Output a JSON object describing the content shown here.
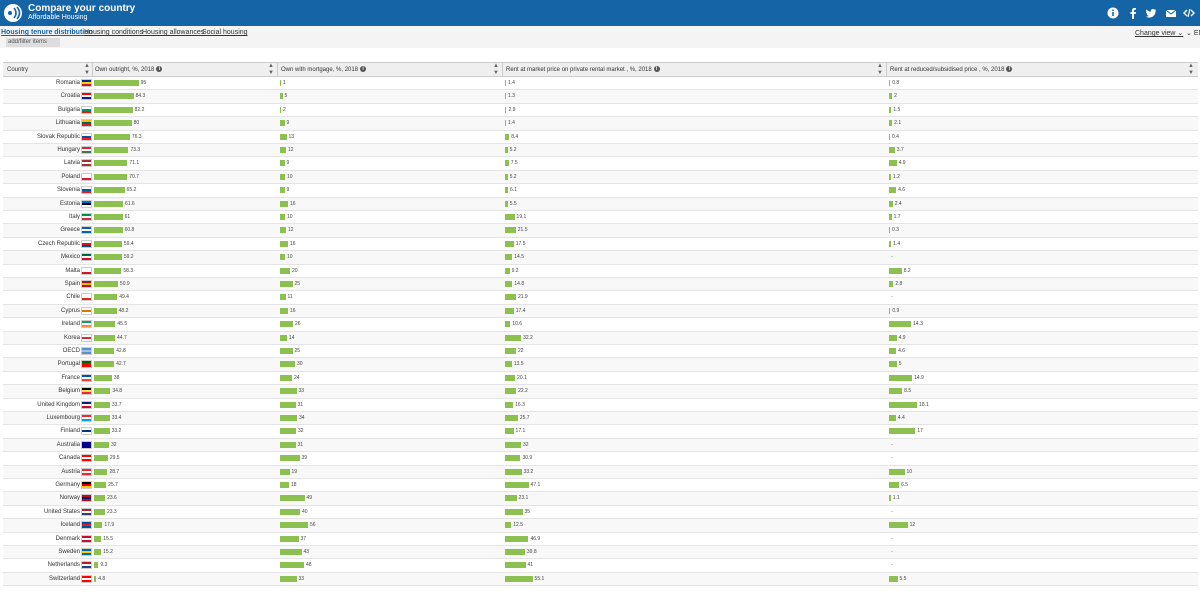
{
  "header": {
    "title": "Compare your country",
    "subtitle": "Affordable Housing",
    "color": "#1565a6"
  },
  "nav": {
    "tabs": [
      "Housing tenure distribution",
      "Housing conditions",
      "Housing allowances",
      "Social housing"
    ],
    "active": 0,
    "chip": "add/filter items",
    "change_view": "Change view",
    "lang": "EN"
  },
  "table": {
    "country_header": "Country",
    "columns": [
      "Own outright, %, 2018",
      "Own with mortgage, %, 2018",
      "Rent at market price on private rental market , %, 2018",
      "Rent at reduced/subsidised price , %, 2018"
    ],
    "bar_color": "#8cc152",
    "rows": [
      {
        "country": "Romania",
        "flag": [
          "#002b7f",
          "#fcd116",
          "#ce1126"
        ],
        "v": [
          "95",
          "1",
          "1.4",
          "0.8"
        ]
      },
      {
        "country": "Croatia",
        "flag": [
          "#ff0000",
          "#ffffff",
          "#171796"
        ],
        "v": [
          "84.3",
          "5",
          "1.3",
          "2"
        ]
      },
      {
        "country": "Bulgaria",
        "flag": [
          "#ffffff",
          "#00966e",
          "#d62612"
        ],
        "v": [
          "82.2",
          "2",
          "2.9",
          "1.5"
        ]
      },
      {
        "country": "Lithuania",
        "flag": [
          "#fdb913",
          "#006a44",
          "#c1272d"
        ],
        "v": [
          "80",
          "9",
          "1.4",
          "2.1"
        ]
      },
      {
        "country": "Slovak Republic",
        "flag": [
          "#ffffff",
          "#0b4ea2",
          "#ee1c25"
        ],
        "v": [
          "76.3",
          "13",
          "8.4",
          "0.4"
        ]
      },
      {
        "country": "Hungary",
        "flag": [
          "#ce2939",
          "#ffffff",
          "#477050"
        ],
        "v": [
          "73.3",
          "12",
          "5.2",
          "3.7"
        ]
      },
      {
        "country": "Latvia",
        "flag": [
          "#9e3039",
          "#ffffff",
          "#9e3039"
        ],
        "v": [
          "71.1",
          "9",
          "7.5",
          "4.9"
        ]
      },
      {
        "country": "Poland",
        "flag": [
          "#ffffff",
          "#ffffff",
          "#dc143c"
        ],
        "v": [
          "70.7",
          "10",
          "5.2",
          "1.2"
        ]
      },
      {
        "country": "Slovenia",
        "flag": [
          "#ffffff",
          "#005da4",
          "#ed1c24"
        ],
        "v": [
          "65.2",
          "9",
          "6.1",
          "4.6"
        ]
      },
      {
        "country": "Estonia",
        "flag": [
          "#0072ce",
          "#000000",
          "#ffffff"
        ],
        "v": [
          "61.6",
          "16",
          "5.5",
          "2.4"
        ]
      },
      {
        "country": "Italy",
        "flag": [
          "#009246",
          "#ffffff",
          "#ce2b37"
        ],
        "v": [
          "61",
          "10",
          "19.1",
          "1.7"
        ]
      },
      {
        "country": "Greece",
        "flag": [
          "#0d5eaf",
          "#ffffff",
          "#0d5eaf"
        ],
        "v": [
          "60.8",
          "12",
          "21.5",
          "0.3"
        ]
      },
      {
        "country": "Czech Republic",
        "flag": [
          "#ffffff",
          "#d7141a",
          "#11457e"
        ],
        "v": [
          "59.4",
          "16",
          "17.5",
          "1.4"
        ]
      },
      {
        "country": "Mexico",
        "flag": [
          "#006847",
          "#ffffff",
          "#ce1126"
        ],
        "v": [
          "59.2",
          "10",
          "14.5",
          "-"
        ]
      },
      {
        "country": "Malta",
        "flag": [
          "#ffffff",
          "#ffffff",
          "#cf142b"
        ],
        "v": [
          "58.3",
          "20",
          "9.2",
          "8.2"
        ]
      },
      {
        "country": "Spain",
        "flag": [
          "#aa151b",
          "#f1bf00",
          "#aa151b"
        ],
        "v": [
          "50.9",
          "25",
          "14.8",
          "2.8"
        ]
      },
      {
        "country": "Chile",
        "flag": [
          "#ffffff",
          "#ffffff",
          "#d52b1e"
        ],
        "v": [
          "49.4",
          "11",
          "21.9",
          "-"
        ]
      },
      {
        "country": "Cyprus",
        "flag": [
          "#ffffff",
          "#d57800",
          "#ffffff"
        ],
        "v": [
          "48.2",
          "16",
          "17.4",
          "0.9"
        ]
      },
      {
        "country": "Ireland",
        "flag": [
          "#169b62",
          "#ffffff",
          "#ff883e"
        ],
        "v": [
          "45.5",
          "26",
          "10.6",
          "14.3"
        ]
      },
      {
        "country": "Korea",
        "flag": [
          "#ffffff",
          "#cd2e3a",
          "#ffffff"
        ],
        "v": [
          "44.7",
          "14",
          "32.2",
          "4.9"
        ]
      },
      {
        "country": "OECD",
        "flag": [
          "#5b8fc7",
          "#9cc3e6",
          "#5b8fc7"
        ],
        "v": [
          "42.8",
          "25",
          "22",
          "4.6"
        ]
      },
      {
        "country": "Portugal",
        "flag": [
          "#006600",
          "#ff0000",
          "#ff0000"
        ],
        "v": [
          "42.7",
          "30",
          "13.5",
          "5"
        ]
      },
      {
        "country": "France",
        "flag": [
          "#0055a4",
          "#ffffff",
          "#ef4135"
        ],
        "v": [
          "38",
          "24",
          "20.1",
          "14.9"
        ]
      },
      {
        "country": "Belgium",
        "flag": [
          "#000000",
          "#fae042",
          "#ed2939"
        ],
        "v": [
          "34.8",
          "33",
          "22.2",
          "8.5"
        ]
      },
      {
        "country": "United Kingdom",
        "flag": [
          "#012169",
          "#ffffff",
          "#c8102e"
        ],
        "v": [
          "33.7",
          "31",
          "16.3",
          "18.1"
        ]
      },
      {
        "country": "Luxembourg",
        "flag": [
          "#ed2939",
          "#ffffff",
          "#00a1de"
        ],
        "v": [
          "33.4",
          "34",
          "25.7",
          "4.4"
        ]
      },
      {
        "country": "Finland",
        "flag": [
          "#ffffff",
          "#003580",
          "#ffffff"
        ],
        "v": [
          "33.2",
          "32",
          "17.1",
          "17"
        ]
      },
      {
        "country": "Australia",
        "flag": [
          "#00008b",
          "#00008b",
          "#00008b"
        ],
        "v": [
          "32",
          "31",
          "32",
          "-"
        ]
      },
      {
        "country": "Canada",
        "flag": [
          "#ff0000",
          "#ffffff",
          "#ff0000"
        ],
        "v": [
          "29.5",
          "39",
          "30.9",
          "-"
        ]
      },
      {
        "country": "Austria",
        "flag": [
          "#ed2939",
          "#ffffff",
          "#ed2939"
        ],
        "v": [
          "28.7",
          "19",
          "33.2",
          "10"
        ]
      },
      {
        "country": "Germany",
        "flag": [
          "#000000",
          "#dd0000",
          "#ffce00"
        ],
        "v": [
          "25.7",
          "18",
          "47.1",
          "6.5"
        ]
      },
      {
        "country": "Norway",
        "flag": [
          "#ba0c2f",
          "#00205b",
          "#ba0c2f"
        ],
        "v": [
          "23.6",
          "49",
          "23.1",
          "1.1"
        ]
      },
      {
        "country": "United States",
        "flag": [
          "#b22234",
          "#ffffff",
          "#3c3b6e"
        ],
        "v": [
          "23.3",
          "40",
          "35",
          "-"
        ]
      },
      {
        "country": "Iceland",
        "flag": [
          "#02529c",
          "#dc1e35",
          "#02529c"
        ],
        "v": [
          "17.9",
          "56",
          "12.5",
          "12"
        ]
      },
      {
        "country": "Denmark",
        "flag": [
          "#c60c30",
          "#ffffff",
          "#c60c30"
        ],
        "v": [
          "15.5",
          "37",
          "46.9",
          "-"
        ]
      },
      {
        "country": "Sweden",
        "flag": [
          "#006aa7",
          "#fecc00",
          "#006aa7"
        ],
        "v": [
          "15.2",
          "43",
          "39.8",
          "-"
        ]
      },
      {
        "country": "Netherlands",
        "flag": [
          "#ae1c28",
          "#ffffff",
          "#21468b"
        ],
        "v": [
          "9.3",
          "48",
          "41",
          "-"
        ]
      },
      {
        "country": "Switzerland",
        "flag": [
          "#ff0000",
          "#ffffff",
          "#ff0000"
        ],
        "v": [
          "4.8",
          "33",
          "55.1",
          "5.5"
        ]
      }
    ]
  }
}
